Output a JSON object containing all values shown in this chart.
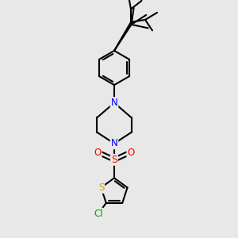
{
  "background_color": "#e8e8e8",
  "bond_color": "#000000",
  "bond_width": 1.5,
  "atom_colors": {
    "N": "#0000ff",
    "S_sulfonyl": "#ff0000",
    "S_thio": "#ccaa00",
    "O": "#ff0000",
    "Cl": "#00aa00",
    "C": "#000000"
  },
  "font_size_atoms": 8.5,
  "xlim": [
    0,
    10
  ],
  "ylim": [
    0,
    10
  ]
}
